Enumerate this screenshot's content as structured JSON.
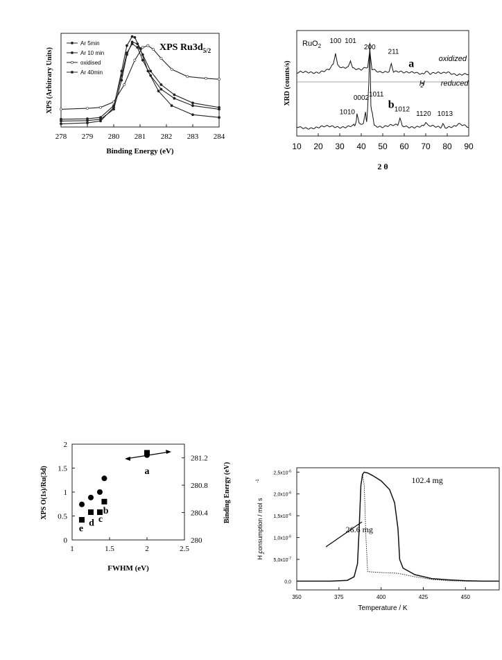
{
  "chart_data": [
    {
      "id": "xps",
      "type": "line",
      "title": "XPS Ru3d",
      "title_sub": "5/2",
      "xlabel": "Binding Energy (eV)",
      "ylabel": "XPS (Arbitrary Units)",
      "xlim": [
        278,
        284
      ],
      "ylim": [
        0,
        1
      ],
      "xticks": [
        278,
        279,
        280,
        281,
        282,
        283,
        284
      ],
      "grid": false,
      "legend": "top-left",
      "series": [
        {
          "name": "Ar 5min",
          "x": [
            278,
            279,
            279.5,
            280,
            280.3,
            280.5,
            280.7,
            280.9,
            281.1,
            281.4,
            281.8,
            282.3,
            283,
            284
          ],
          "y": [
            0.07,
            0.075,
            0.09,
            0.22,
            0.55,
            0.8,
            0.9,
            0.86,
            0.72,
            0.55,
            0.4,
            0.3,
            0.22,
            0.18
          ]
        },
        {
          "name": "Ar 10 min",
          "x": [
            278,
            279,
            279.5,
            280,
            280.3,
            280.5,
            280.7,
            280.9,
            281.1,
            281.4,
            281.8,
            282.3,
            283,
            284
          ],
          "y": [
            0.05,
            0.055,
            0.07,
            0.18,
            0.5,
            0.78,
            0.92,
            0.9,
            0.78,
            0.6,
            0.45,
            0.34,
            0.25,
            0.2
          ]
        },
        {
          "name": "oxidised",
          "x": [
            278,
            279,
            279.5,
            280,
            280.4,
            280.8,
            281.1,
            281.3,
            281.5,
            281.8,
            282.2,
            282.8,
            283.5,
            284
          ],
          "y": [
            0.18,
            0.19,
            0.2,
            0.26,
            0.45,
            0.72,
            0.86,
            0.88,
            0.84,
            0.74,
            0.62,
            0.54,
            0.52,
            0.51
          ]
        },
        {
          "name": "Ar 40min",
          "x": [
            278,
            279,
            279.5,
            280,
            280.3,
            280.5,
            280.7,
            280.8,
            281,
            281.3,
            281.7,
            282.2,
            283,
            284
          ],
          "y": [
            0.02,
            0.03,
            0.05,
            0.2,
            0.6,
            0.88,
            0.98,
            0.97,
            0.85,
            0.6,
            0.38,
            0.22,
            0.12,
            0.09
          ]
        }
      ]
    },
    {
      "id": "xrd",
      "type": "line",
      "xlabel": "2 θ",
      "ylabel": "XRD (counts/s)",
      "xlim": [
        10,
        90
      ],
      "xticks": [
        10,
        20,
        30,
        40,
        50,
        60,
        70,
        80,
        90
      ],
      "grid": false,
      "top_label": "RuO",
      "top_label_sub": "2",
      "annotations": [
        {
          "text": "a",
          "x": 62,
          "y": 0.73
        },
        {
          "text": "oxidized",
          "x": 76,
          "y": 0.8
        },
        {
          "text": "H",
          "x": 67,
          "y": 0.52
        },
        {
          "text": "2",
          "x": 67.6,
          "y": 0.5
        },
        {
          "text": "reduced",
          "x": 77,
          "y": 0.52
        },
        {
          "text": "b",
          "x": 52.5,
          "y": 0.27
        }
      ],
      "peak_labels": [
        {
          "text": "100",
          "x": 28,
          "y": 1.0
        },
        {
          "text": "101",
          "x": 35,
          "y": 1.0
        },
        {
          "text": "200",
          "x": 44,
          "y": 0.93
        },
        {
          "text": "211",
          "x": 55,
          "y": 0.88
        },
        {
          "text": "0002",
          "x": 40,
          "y": 0.36
        },
        {
          "text": "1011",
          "x": 47,
          "y": 0.4
        },
        {
          "text": "1010",
          "x": 33.5,
          "y": 0.2
        },
        {
          "text": "1012",
          "x": 59,
          "y": 0.23
        },
        {
          "text": "1120",
          "x": 69,
          "y": 0.18
        },
        {
          "text": "1013",
          "x": 79,
          "y": 0.18
        }
      ],
      "series": [
        {
          "x": [
            10,
            20,
            25,
            27,
            28,
            29,
            31,
            34,
            35,
            36,
            40,
            43,
            44,
            45,
            48,
            53,
            54,
            55,
            60,
            65,
            69,
            70,
            72,
            78,
            80,
            85,
            90
          ],
          "y": [
            0.66,
            0.68,
            0.7,
            0.75,
            0.88,
            0.74,
            0.72,
            0.74,
            0.82,
            0.73,
            0.7,
            0.72,
            0.9,
            0.7,
            0.68,
            0.69,
            0.77,
            0.68,
            0.66,
            0.68,
            0.66,
            0.69,
            0.65,
            0.66,
            0.68,
            0.65,
            0.64
          ]
        },
        {
          "x": [
            10,
            20,
            30,
            36,
            37.5,
            38,
            39,
            41,
            42,
            42.5,
            43,
            43.5,
            44,
            44.5,
            46,
            50,
            57,
            58,
            59,
            65,
            69,
            70,
            71,
            77,
            78,
            79,
            84,
            85,
            90
          ],
          "y": [
            0.05,
            0.05,
            0.06,
            0.07,
            0.09,
            0.2,
            0.08,
            0.08,
            0.22,
            0.1,
            0.28,
            0.55,
            1.0,
            0.3,
            0.08,
            0.06,
            0.07,
            0.15,
            0.07,
            0.06,
            0.06,
            0.1,
            0.06,
            0.06,
            0.1,
            0.06,
            0.06,
            0.08,
            0.05
          ]
        }
      ]
    },
    {
      "id": "fwhm",
      "type": "scatter",
      "xlabel": "FWHM (eV)",
      "ylabel": "XPS O(1s)/Ru(3d)",
      "y2label": "Binding Energy (eV)",
      "xlim": [
        1,
        2.5
      ],
      "ylim": [
        0,
        2
      ],
      "y2lim": [
        280,
        281.4
      ],
      "xticks": [
        "1",
        "1.5",
        "2",
        "2.5"
      ],
      "yticks": [
        "0",
        "0.5",
        "1",
        "1.5",
        "2"
      ],
      "y2ticks": [
        "280",
        "280.4",
        "280.8",
        "281.2"
      ],
      "grid": false,
      "series": [
        {
          "marker": "square",
          "axis": "left",
          "x": [
            1.13,
            1.25,
            1.37,
            1.43,
            2.0
          ],
          "y": [
            0.42,
            0.58,
            0.58,
            0.8,
            1.82
          ]
        },
        {
          "marker": "circle",
          "axis": "right",
          "x": [
            1.13,
            1.25,
            1.37,
            1.43,
            2.0
          ],
          "y": [
            280.52,
            280.62,
            280.7,
            280.9,
            281.24
          ]
        }
      ],
      "point_labels": [
        {
          "text": "e",
          "x": 1.12,
          "y": 0.18
        },
        {
          "text": "d",
          "x": 1.26,
          "y": 0.3
        },
        {
          "text": "c",
          "x": 1.38,
          "y": 0.38
        },
        {
          "text": "b",
          "x": 1.45,
          "y": 0.55
        },
        {
          "text": "a",
          "x": 2.0,
          "y": 1.38
        }
      ]
    },
    {
      "id": "tpr",
      "type": "line",
      "xlabel": "Temperature / K",
      "ylabel": "H consumption / mol s",
      "ylabel_sub": "2",
      "ylabel_sup": "-1",
      "xlim": [
        350,
        470
      ],
      "ylim": [
        -2e-07,
        2.6e-06
      ],
      "xticks": [
        "350",
        "375",
        "400",
        "425",
        "450"
      ],
      "yticks": [
        {
          "v": 0,
          "mant": "0,0",
          "exp": ""
        },
        {
          "v": 5e-07,
          "mant": "5,0x10",
          "exp": "-7"
        },
        {
          "v": 1e-06,
          "mant": "1,0x10",
          "exp": "-6"
        },
        {
          "v": 1.5e-06,
          "mant": "1,5x10",
          "exp": "-6"
        },
        {
          "v": 2e-06,
          "mant": "2,0x10",
          "exp": "-6"
        },
        {
          "v": 2.5e-06,
          "mant": "2,5x10",
          "exp": "-6"
        }
      ],
      "grid": false,
      "series": [
        {
          "name": "102.4 mg",
          "style": "solid",
          "x": [
            350,
            370,
            380,
            384,
            386,
            387,
            388,
            389,
            390,
            392,
            395,
            400,
            405,
            408,
            410,
            411,
            413,
            420,
            430,
            440,
            450,
            460,
            470
          ],
          "y": [
            0,
            0,
            2e-08,
            1e-07,
            4e-07,
            1.2e-06,
            2.2e-06,
            2.45e-06,
            2.5e-06,
            2.48e-06,
            2.42e-06,
            2.3e-06,
            2.1e-06,
            1.8e-06,
            1.2e-06,
            5e-07,
            3e-07,
            1.5e-07,
            6e-08,
            3e-08,
            1e-08,
            0,
            0
          ]
        },
        {
          "name": "26.6 mg",
          "style": "dotted",
          "x": [
            350,
            370,
            380,
            384,
            386,
            387,
            388,
            389,
            390,
            391,
            392,
            395,
            400,
            410,
            420,
            430,
            440,
            450,
            460,
            470
          ],
          "y": [
            0,
            0,
            2e-08,
            1e-07,
            4e-07,
            1.2e-06,
            2.2e-06,
            2.45e-06,
            2.2e-06,
            1e-06,
            2.2e-07,
            2.1e-07,
            2e-07,
            1.8e-07,
            1e-07,
            4e-08,
            1e-08,
            0,
            0,
            0
          ]
        }
      ],
      "annotations": [
        {
          "text": "102.4 mg",
          "x": 418,
          "y": 2.25e-06
        },
        {
          "text": "26.6 mg",
          "x": 379,
          "y": 1.12e-06
        }
      ]
    }
  ]
}
